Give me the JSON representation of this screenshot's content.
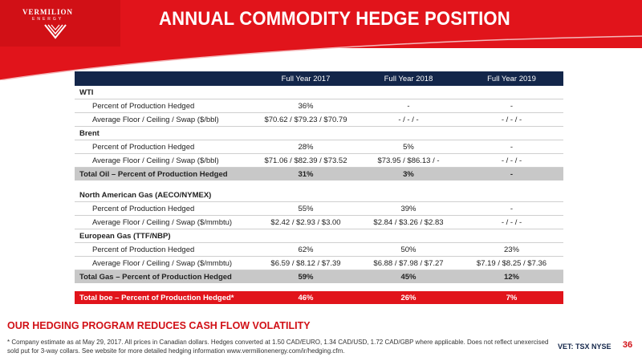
{
  "brand": {
    "name": "VERMILION",
    "sub": "ENERGY"
  },
  "title": "ANNUAL COMMODITY HEDGE POSITION",
  "table": {
    "headers": [
      "",
      "Full Year 2017",
      "Full Year 2018",
      "Full Year 2019"
    ],
    "rows": [
      {
        "type": "sec",
        "label": "WTI",
        "v": [
          "",
          "",
          ""
        ]
      },
      {
        "type": "sub",
        "label": "Percent of Production Hedged",
        "v": [
          "36%",
          "-",
          "-"
        ]
      },
      {
        "type": "sub",
        "label": "Average Floor / Ceiling / Swap ($/bbl)",
        "v": [
          "$70.62 / $79.23 / $70.79",
          "- / - / -",
          "- / - / -"
        ]
      },
      {
        "type": "sec",
        "label": "Brent",
        "v": [
          "",
          "",
          ""
        ]
      },
      {
        "type": "sub",
        "label": "Percent of Production Hedged",
        "v": [
          "28%",
          "5%",
          "-"
        ]
      },
      {
        "type": "sub",
        "label": "Average Floor / Ceiling / Swap ($/bbl)",
        "v": [
          "$71.06 / $82.39 / $73.52",
          "$73.95 / $86.13 / -",
          "- / - / -"
        ]
      },
      {
        "type": "total",
        "label": "Total Oil – Percent of Production Hedged",
        "v": [
          "31%",
          "3%",
          "-"
        ]
      },
      {
        "type": "gap",
        "label": "",
        "v": [
          "",
          "",
          ""
        ]
      },
      {
        "type": "sec",
        "label": "North American Gas (AECO/NYMEX)",
        "v": [
          "",
          "",
          ""
        ]
      },
      {
        "type": "sub",
        "label": "Percent of Production Hedged",
        "v": [
          "55%",
          "39%",
          "-"
        ]
      },
      {
        "type": "sub",
        "label": "Average Floor / Ceiling / Swap ($/mmbtu)",
        "v": [
          "$2.42 / $2.93 / $3.00",
          "$2.84 / $3.26 / $2.83",
          "- / - / -"
        ]
      },
      {
        "type": "sec",
        "label": "European Gas (TTF/NBP)",
        "v": [
          "",
          "",
          ""
        ]
      },
      {
        "type": "sub",
        "label": "Percent of Production Hedged",
        "v": [
          "62%",
          "50%",
          "23%"
        ]
      },
      {
        "type": "sub",
        "label": "Average Floor / Ceiling / Swap ($/mmbtu)",
        "v": [
          "$6.59 / $8.12 / $7.39",
          "$6.88 / $7.98 / $7.27",
          "$7.19 / $8.25 / $7.36"
        ]
      },
      {
        "type": "total",
        "label": "Total Gas – Percent of Production Hedged",
        "v": [
          "59%",
          "45%",
          "12%"
        ]
      },
      {
        "type": "gap",
        "label": "",
        "v": [
          "",
          "",
          ""
        ]
      },
      {
        "type": "grand",
        "label": "Total boe – Percent of Production Hedged*",
        "v": [
          "46%",
          "26%",
          "7%"
        ]
      }
    ]
  },
  "tagline": "OUR HEDGING PROGRAM REDUCES CASH FLOW VOLATILITY",
  "footnote": "*  Company estimate as at May 29, 2017. All prices in Canadian dollars. Hedges converted at 1.50 CAD/EURO, 1.34 CAD/USD, 1.72 CAD/GBP where applicable.  Does not reflect unexercised sold put for 3-way collars. See website for more detailed hedging information www.vermilionenergy.com/ir/hedging.cfm.",
  "exchange": "VET: TSX NYSE",
  "page_number": "36",
  "colors": {
    "red": "#e1141b",
    "navy": "#13264a",
    "total_gray": "#c8c8c8"
  }
}
